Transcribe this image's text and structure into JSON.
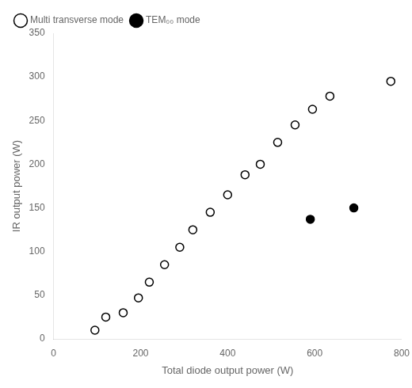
{
  "chart_data": {
    "type": "scatter",
    "xlabel": "Total diode output power (W)",
    "ylabel": "IR output power (W)",
    "series": [
      {
        "name": "Multi transverse mode",
        "color": "#000000",
        "marker": "circle-open",
        "x": [
          95,
          120,
          160,
          195,
          220,
          255,
          290,
          320,
          360,
          400,
          440,
          475,
          515,
          555,
          595,
          635,
          775
        ],
        "values": [
          10,
          25,
          30,
          47,
          65,
          85,
          105,
          125,
          145,
          165,
          188,
          200,
          225,
          245,
          263,
          278,
          295
        ]
      },
      {
        "name": "TEM₀₀ mode",
        "color": "#000000",
        "marker": "circle",
        "x": [
          590,
          690
        ],
        "values": [
          137,
          150
        ]
      }
    ],
    "xlim": [
      0,
      800
    ],
    "ylim": [
      0,
      350
    ],
    "xticks": [
      0,
      200,
      400,
      600,
      800
    ],
    "yticks": [
      0,
      50,
      100,
      150,
      200,
      250,
      300,
      350
    ],
    "grid": false,
    "legend": "upper left"
  }
}
